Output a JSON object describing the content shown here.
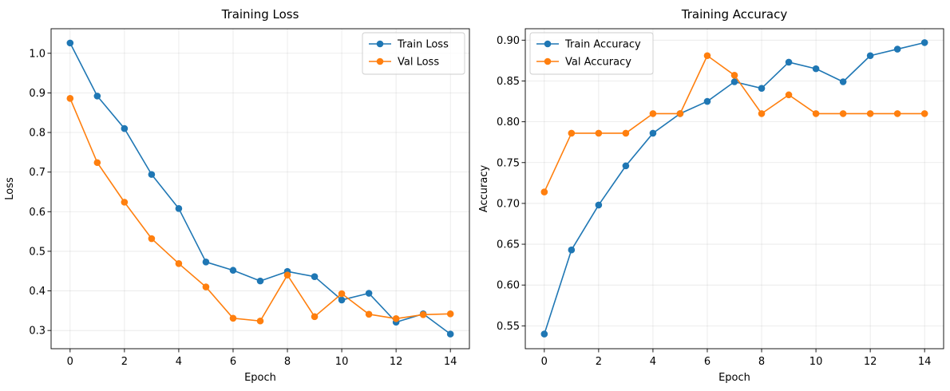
{
  "chart_data": [
    {
      "type": "line",
      "title": "Training Loss",
      "xlabel": "Epoch",
      "ylabel": "Loss",
      "xlim": [
        -0.7,
        14.7
      ],
      "ylim": [
        0.254,
        1.062
      ],
      "xticks": [
        0,
        2,
        4,
        6,
        8,
        10,
        12,
        14
      ],
      "yticks": [
        0.3,
        0.4,
        0.5,
        0.6,
        0.7,
        0.8,
        0.9,
        1.0
      ],
      "ytick_labels": [
        "0.3",
        "0.4",
        "0.5",
        "0.6",
        "0.7",
        "0.8",
        "0.9",
        "1.0"
      ],
      "grid": true,
      "legend_position": "top-right",
      "x": [
        0,
        1,
        2,
        3,
        4,
        5,
        6,
        7,
        8,
        9,
        10,
        11,
        12,
        13,
        14
      ],
      "series": [
        {
          "name": "Train Loss",
          "color": "#1f77b4",
          "values": [
            1.026,
            0.892,
            0.81,
            0.694,
            0.608,
            0.473,
            0.452,
            0.425,
            0.449,
            0.436,
            0.377,
            0.394,
            0.321,
            0.342,
            0.291
          ]
        },
        {
          "name": "Val Loss",
          "color": "#ff7f0e",
          "values": [
            0.886,
            0.724,
            0.624,
            0.532,
            0.469,
            0.41,
            0.331,
            0.324,
            0.44,
            0.335,
            0.393,
            0.341,
            0.33,
            0.34,
            0.342
          ]
        }
      ]
    },
    {
      "type": "line",
      "title": "Training Accuracy",
      "xlabel": "Epoch",
      "ylabel": "Accuracy",
      "xlim": [
        -0.7,
        14.7
      ],
      "ylim": [
        0.522,
        0.914
      ],
      "xticks": [
        0,
        2,
        4,
        6,
        8,
        10,
        12,
        14
      ],
      "yticks": [
        0.55,
        0.6,
        0.65,
        0.7,
        0.75,
        0.8,
        0.85,
        0.9
      ],
      "ytick_labels": [
        "0.55",
        "0.60",
        "0.65",
        "0.70",
        "0.75",
        "0.80",
        "0.85",
        "0.90"
      ],
      "grid": true,
      "legend_position": "top-left",
      "x": [
        0,
        1,
        2,
        3,
        4,
        5,
        6,
        7,
        8,
        9,
        10,
        11,
        12,
        13,
        14
      ],
      "series": [
        {
          "name": "Train Accuracy",
          "color": "#1f77b4",
          "values": [
            0.54,
            0.643,
            0.698,
            0.746,
            0.786,
            0.81,
            0.825,
            0.849,
            0.841,
            0.873,
            0.865,
            0.849,
            0.881,
            0.889,
            0.897
          ]
        },
        {
          "name": "Val Accuracy",
          "color": "#ff7f0e",
          "values": [
            0.714,
            0.786,
            0.786,
            0.786,
            0.81,
            0.81,
            0.881,
            0.857,
            0.81,
            0.833,
            0.81,
            0.81,
            0.81,
            0.81,
            0.81
          ]
        }
      ]
    }
  ]
}
